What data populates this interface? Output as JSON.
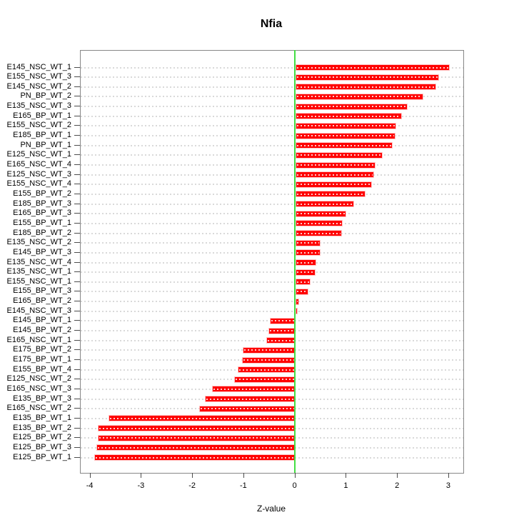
{
  "title": "Nfia",
  "chart_data": {
    "type": "bar",
    "orientation": "horizontal",
    "title": "Nfia",
    "xlabel": "Z-value",
    "ylabel": "",
    "xlim": [
      -4.19,
      3.28
    ],
    "x_ticks": [
      -4,
      -3,
      -2,
      -1,
      0,
      1,
      2,
      3
    ],
    "grid": true,
    "legend": "none",
    "colors": {
      "bar": "#ff0000",
      "bar_border": "#ffc4c4",
      "bar_hatch": "rgba(255,255,255,0.8)",
      "grid_line": "#d9d9d9",
      "zero_line": "#44dd44",
      "box_border": "#878787",
      "tick": "#4d4d4d",
      "text": "#000000"
    },
    "categories": [
      "E145_NSC_WT_1",
      "E155_NSC_WT_3",
      "E145_NSC_WT_2",
      "PN_BP_WT_2",
      "E135_NSC_WT_3",
      "E165_BP_WT_1",
      "E155_NSC_WT_2",
      "E185_BP_WT_1",
      "PN_BP_WT_1",
      "E125_NSC_WT_1",
      "E165_NSC_WT_4",
      "E125_NSC_WT_3",
      "E155_NSC_WT_4",
      "E155_BP_WT_2",
      "E185_BP_WT_3",
      "E165_BP_WT_3",
      "E155_BP_WT_1",
      "E185_BP_WT_2",
      "E135_NSC_WT_2",
      "E145_BP_WT_3",
      "E135_NSC_WT_4",
      "E135_NSC_WT_1",
      "E155_NSC_WT_1",
      "E155_BP_WT_3",
      "E165_BP_WT_2",
      "E145_NSC_WT_3",
      "E145_BP_WT_1",
      "E145_BP_WT_2",
      "E165_NSC_WT_1",
      "E175_BP_WT_2",
      "E175_BP_WT_1",
      "E155_BP_WT_4",
      "E125_NSC_WT_2",
      "E165_NSC_WT_3",
      "E135_BP_WT_3",
      "E165_NSC_WT_2",
      "E135_BP_WT_1",
      "E135_BP_WT_2",
      "E125_BP_WT_2",
      "E125_BP_WT_3",
      "E125_BP_WT_1"
    ],
    "values": [
      3.01,
      2.81,
      2.75,
      2.5,
      2.19,
      2.08,
      1.97,
      1.95,
      1.9,
      1.7,
      1.56,
      1.54,
      1.49,
      1.37,
      1.15,
      1.0,
      0.93,
      0.91,
      0.49,
      0.49,
      0.41,
      0.4,
      0.3,
      0.26,
      0.08,
      0.04,
      -0.49,
      -0.53,
      -0.56,
      -1.02,
      -1.04,
      -1.12,
      -1.19,
      -1.62,
      -1.76,
      -1.87,
      -3.65,
      -3.85,
      -3.86,
      -3.89,
      -3.93
    ]
  }
}
